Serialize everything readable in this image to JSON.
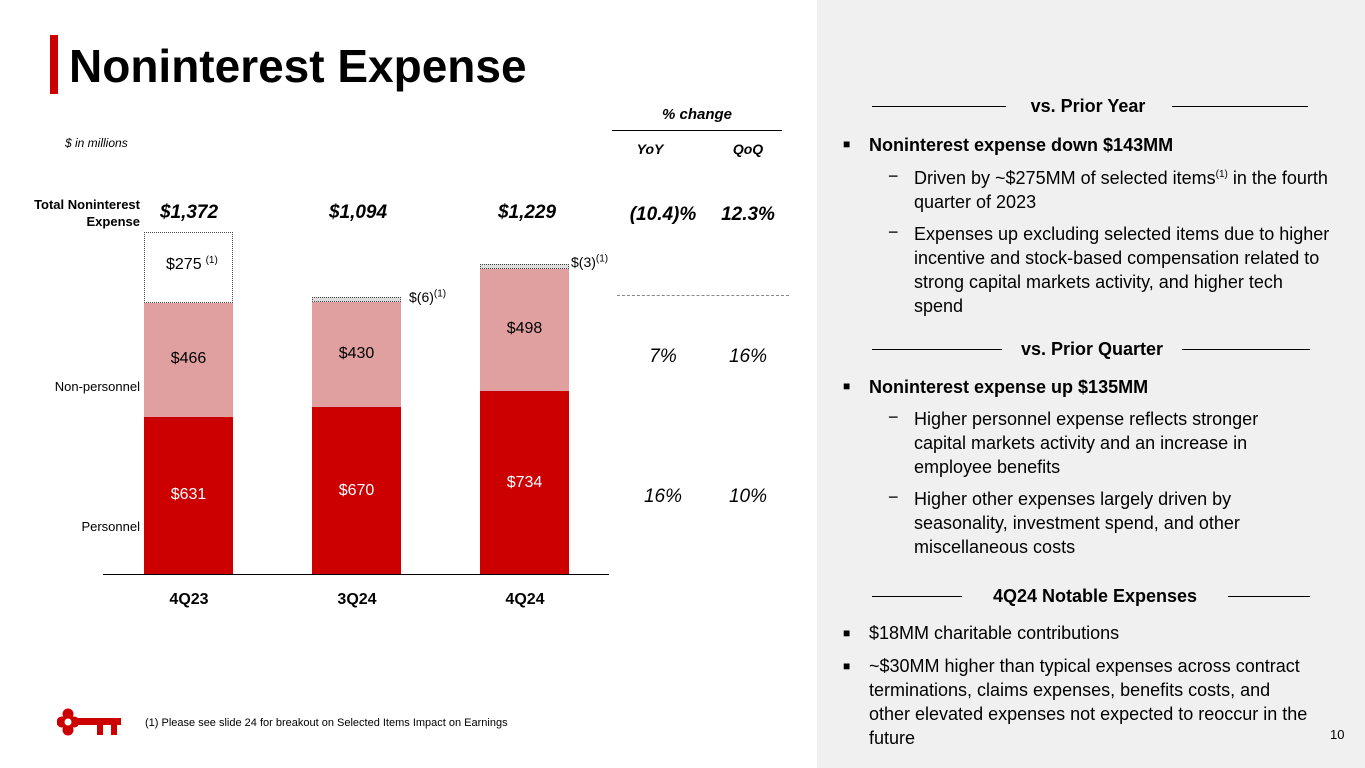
{
  "title": "Noninterest Expense",
  "units_note": "$ in millions",
  "pct_change_header": "% change",
  "yoy_label": "YoY",
  "qoq_label": "QoQ",
  "row_labels": {
    "total": "Total Noninterest Expense",
    "non_personnel": "Non-personnel",
    "personnel": "Personnel"
  },
  "chart_data": {
    "type": "bar",
    "stacked": true,
    "categories": [
      "4Q23",
      "3Q24",
      "4Q24"
    ],
    "series": [
      {
        "name": "Personnel",
        "values": [
          631,
          670,
          734
        ],
        "labels": [
          "$631",
          "$670",
          "$734"
        ],
        "color": "#cc0000"
      },
      {
        "name": "Non-personnel",
        "values": [
          466,
          430,
          498
        ],
        "labels": [
          "$466",
          "$430",
          "$498"
        ],
        "color": "#e0a0a0"
      },
      {
        "name": "Selected items",
        "values": [
          275,
          -6,
          -3
        ],
        "labels": [
          "$275",
          "$(6)",
          "$(3)"
        ],
        "footnote": "(1)"
      }
    ],
    "totals": [
      "$1,372",
      "$1,094",
      "$1,229"
    ],
    "total_values": [
      1372,
      1094,
      1229
    ]
  },
  "pct_changes": {
    "total": {
      "yoy": "(10.4)%",
      "qoq": "12.3%"
    },
    "non_personnel": {
      "yoy": "7%",
      "qoq": "16%"
    },
    "personnel": {
      "yoy": "16%",
      "qoq": "10%"
    }
  },
  "footnote": "(1) Please see slide 24 for breakout on Selected Items Impact on Earnings",
  "page_number": "10",
  "colors": {
    "accent": "#cc0000",
    "light": "#e0a0a0",
    "panel": "#f0f0f0"
  },
  "right": {
    "prior_year": {
      "header": "vs. Prior Year",
      "bullet": "Noninterest expense down $143MM",
      "sub1_a": "Driven by ~$275MM of selected items",
      "sub1_sup": "(1)",
      "sub1_b": " in the fourth quarter of 2023",
      "sub2": "Expenses up excluding selected items due to higher incentive and stock-based compensation related to strong capital markets activity, and higher tech spend"
    },
    "prior_quarter": {
      "header": "vs. Prior Quarter",
      "bullet": "Noninterest expense up $135MM",
      "sub1": "Higher personnel expense reflects stronger capital markets activity and an increase in employee benefits",
      "sub2": "Higher other expenses largely driven by seasonality, investment spend, and other miscellaneous costs"
    },
    "notable": {
      "header": "4Q24 Notable Expenses",
      "bullet1": "$18MM charitable contributions",
      "bullet2": "~$30MM higher than typical expenses across contract terminations, claims expenses, benefits costs, and other elevated expenses not expected to reoccur in the future"
    }
  }
}
